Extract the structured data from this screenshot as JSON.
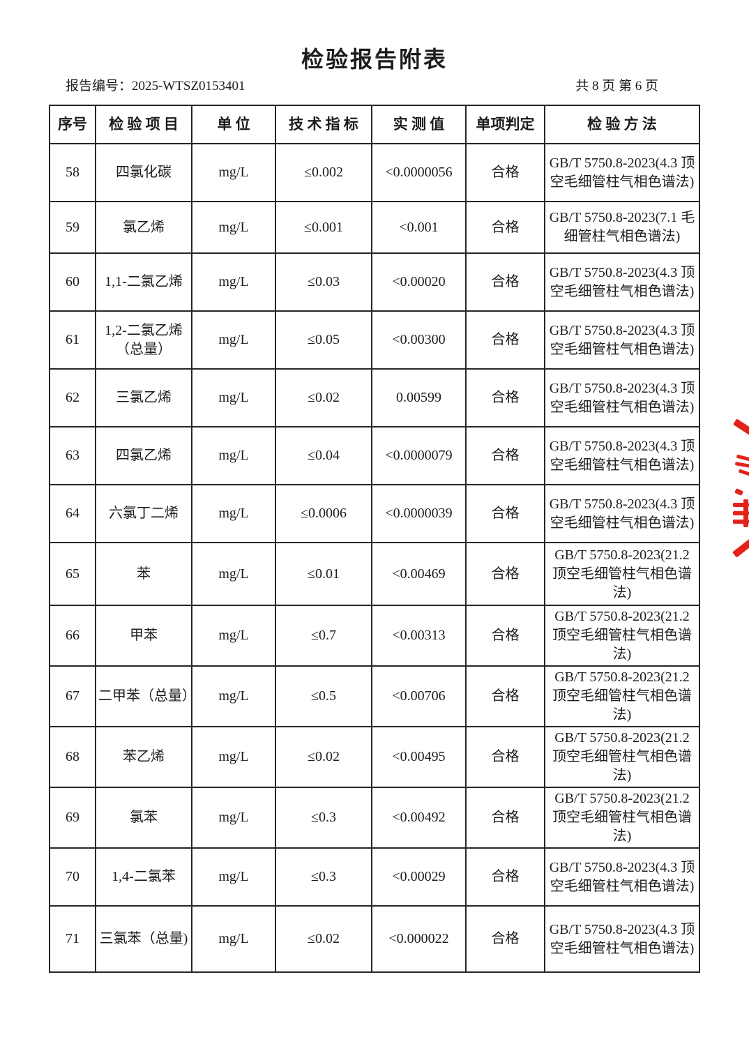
{
  "page": {
    "title": "检验报告附表",
    "report_no_label": "报告编号：",
    "report_no": "2025-WTSZ0153401",
    "page_info": "共 8 页  第 6 页"
  },
  "table": {
    "headers": [
      "序号",
      "检 验 项 目",
      "单 位",
      "技 术 指 标",
      "实 测 值",
      "单项判定",
      "检 验 方 法"
    ],
    "rows": [
      {
        "no": "58",
        "item": "四氯化碳",
        "unit": "mg/L",
        "limit": "≤0.002",
        "measured": "<0.0000056",
        "judgment": "合格",
        "method": "GB/T 5750.8-2023(4.3 顶空毛细管柱气相色谱法)"
      },
      {
        "no": "59",
        "item": "氯乙烯",
        "unit": "mg/L",
        "limit": "≤0.001",
        "measured": "<0.001",
        "judgment": "合格",
        "method": "GB/T 5750.8-2023(7.1 毛细管柱气相色谱法)"
      },
      {
        "no": "60",
        "item": "1,1-二氯乙烯",
        "unit": "mg/L",
        "limit": "≤0.03",
        "measured": "<0.00020",
        "judgment": "合格",
        "method": "GB/T 5750.8-2023(4.3 顶空毛细管柱气相色谱法)"
      },
      {
        "no": "61",
        "item": "1,2-二氯乙烯（总量）",
        "unit": "mg/L",
        "limit": "≤0.05",
        "measured": "<0.00300",
        "judgment": "合格",
        "method": "GB/T 5750.8-2023(4.3 顶空毛细管柱气相色谱法)"
      },
      {
        "no": "62",
        "item": "三氯乙烯",
        "unit": "mg/L",
        "limit": "≤0.02",
        "measured": "0.00599",
        "judgment": "合格",
        "method": "GB/T 5750.8-2023(4.3 顶空毛细管柱气相色谱法)"
      },
      {
        "no": "63",
        "item": "四氯乙烯",
        "unit": "mg/L",
        "limit": "≤0.04",
        "measured": "<0.0000079",
        "judgment": "合格",
        "method": "GB/T 5750.8-2023(4.3 顶空毛细管柱气相色谱法)"
      },
      {
        "no": "64",
        "item": "六氯丁二烯",
        "unit": "mg/L",
        "limit": "≤0.0006",
        "measured": "<0.0000039",
        "judgment": "合格",
        "method": "GB/T 5750.8-2023(4.3 顶空毛细管柱气相色谱法)"
      },
      {
        "no": "65",
        "item": "苯",
        "unit": "mg/L",
        "limit": "≤0.01",
        "measured": "<0.00469",
        "judgment": "合格",
        "method": "GB/T 5750.8-2023(21.2 顶空毛细管柱气相色谱法)"
      },
      {
        "no": "66",
        "item": "甲苯",
        "unit": "mg/L",
        "limit": "≤0.7",
        "measured": "<0.00313",
        "judgment": "合格",
        "method": "GB/T 5750.8-2023(21.2 顶空毛细管柱气相色谱法)"
      },
      {
        "no": "67",
        "item": "二甲苯（总量）",
        "unit": "mg/L",
        "limit": "≤0.5",
        "measured": "<0.00706",
        "judgment": "合格",
        "method": "GB/T 5750.8-2023(21.2 顶空毛细管柱气相色谱法)"
      },
      {
        "no": "68",
        "item": "苯乙烯",
        "unit": "mg/L",
        "limit": "≤0.02",
        "measured": "<0.00495",
        "judgment": "合格",
        "method": "GB/T 5750.8-2023(21.2 顶空毛细管柱气相色谱法)"
      },
      {
        "no": "69",
        "item": "氯苯",
        "unit": "mg/L",
        "limit": "≤0.3",
        "measured": "<0.00492",
        "judgment": "合格",
        "method": "GB/T 5750.8-2023(21.2 顶空毛细管柱气相色谱法)"
      },
      {
        "no": "70",
        "item": "1,4-二氯苯",
        "unit": "mg/L",
        "limit": "≤0.3",
        "measured": "<0.00029",
        "judgment": "合格",
        "method": "GB/T 5750.8-2023(4.3 顶空毛细管柱气相色谱法)"
      },
      {
        "no": "71",
        "item": "三氯苯（总量)",
        "unit": "mg/L",
        "limit": "≤0.02",
        "measured": "<0.000022",
        "judgment": "合格",
        "method": "GB/T 5750.8-2023(4.3 顶空毛细管柱气相色谱法)"
      }
    ]
  },
  "stamp": {
    "color": "#e3231a"
  }
}
